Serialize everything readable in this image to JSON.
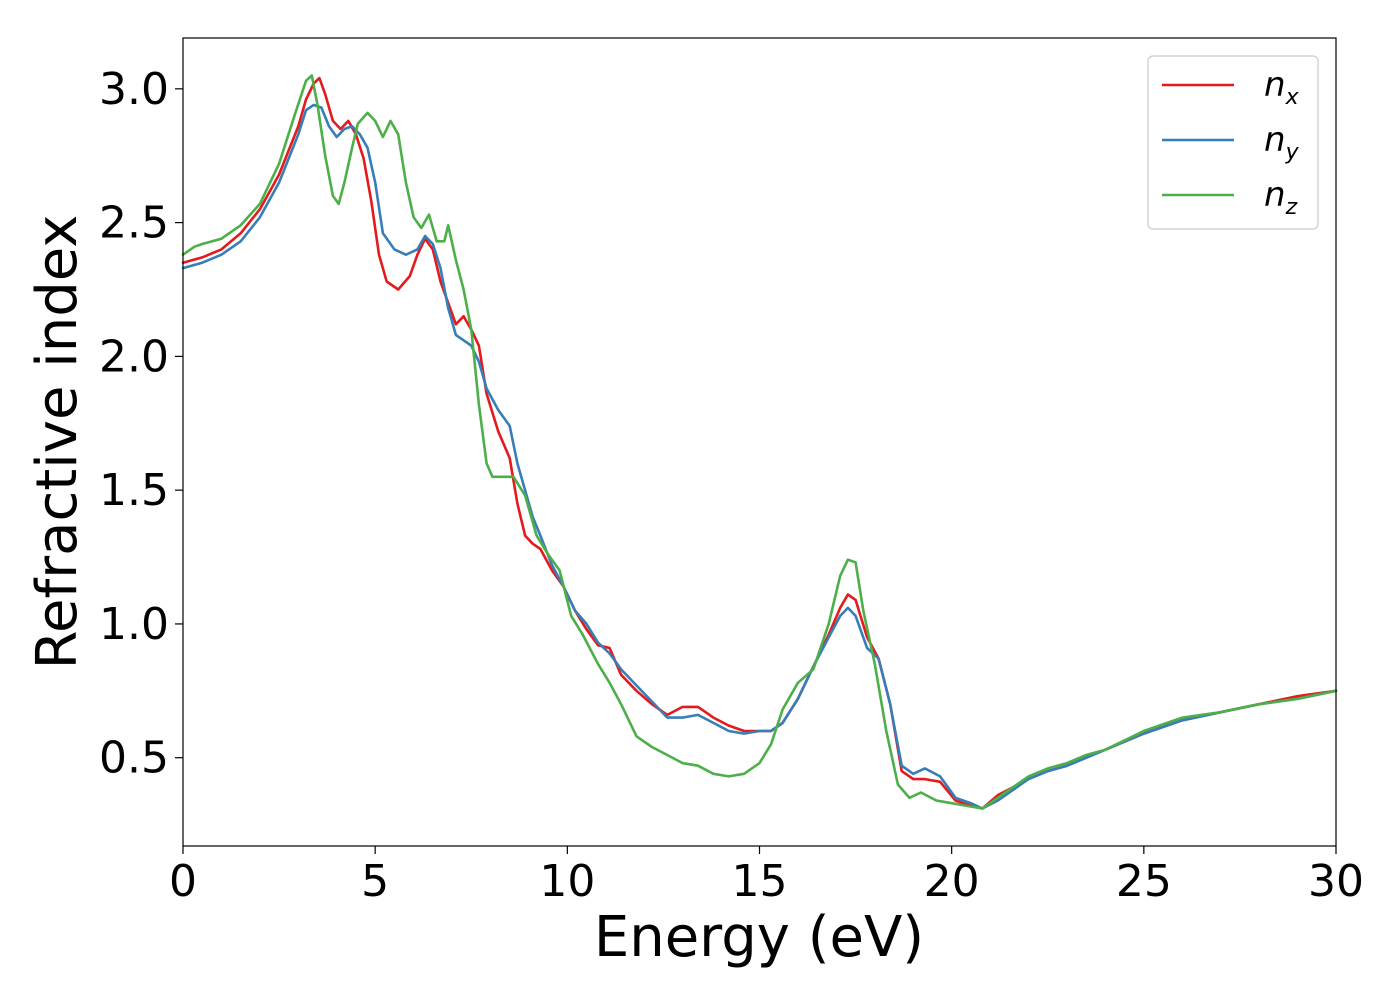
{
  "chart_data": {
    "type": "line",
    "title": "",
    "xlabel": "Energy (eV)",
    "ylabel": "Refractive index",
    "xlim": [
      0,
      30
    ],
    "ylim": [
      0.17,
      3.19
    ],
    "xticks": [
      0,
      5,
      10,
      15,
      20,
      25,
      30
    ],
    "xtick_labels": [
      "0",
      "5",
      "10",
      "15",
      "20",
      "25",
      "30"
    ],
    "yticks": [
      0.5,
      1.0,
      1.5,
      2.0,
      2.5,
      3.0
    ],
    "ytick_labels": [
      "0.5",
      "1.0",
      "1.5",
      "2.0",
      "2.5",
      "3.0"
    ],
    "grid": false,
    "legend_position": "top-right",
    "series": [
      {
        "name": "n",
        "subscript": "x",
        "color": "#e41a1c",
        "x": [
          0,
          0.5,
          1,
          1.5,
          2,
          2.5,
          3,
          3.2,
          3.4,
          3.55,
          3.7,
          3.9,
          4.1,
          4.3,
          4.5,
          4.7,
          4.9,
          5.1,
          5.3,
          5.6,
          5.9,
          6.1,
          6.3,
          6.5,
          6.7,
          6.9,
          7.1,
          7.3,
          7.5,
          7.7,
          7.9,
          8.2,
          8.5,
          8.7,
          8.9,
          9.1,
          9.3,
          9.6,
          9.9,
          10.2,
          10.5,
          10.8,
          11.1,
          11.4,
          11.8,
          12.2,
          12.6,
          13,
          13.4,
          13.8,
          14.2,
          14.6,
          15,
          15.3,
          15.6,
          16,
          16.4,
          16.8,
          17.1,
          17.3,
          17.5,
          17.8,
          18.1,
          18.4,
          18.7,
          19,
          19.3,
          19.7,
          20.1,
          20.5,
          20.8,
          21.2,
          21.6,
          22,
          22.5,
          23,
          23.5,
          24,
          25,
          26,
          27,
          28,
          29,
          30
        ],
        "y": [
          2.35,
          2.37,
          2.4,
          2.46,
          2.55,
          2.68,
          2.86,
          2.96,
          3.02,
          3.04,
          2.98,
          2.88,
          2.85,
          2.88,
          2.83,
          2.74,
          2.58,
          2.38,
          2.28,
          2.25,
          2.3,
          2.38,
          2.44,
          2.4,
          2.28,
          2.2,
          2.12,
          2.15,
          2.1,
          2.04,
          1.86,
          1.72,
          1.62,
          1.45,
          1.33,
          1.3,
          1.28,
          1.2,
          1.14,
          1.05,
          0.98,
          0.92,
          0.91,
          0.81,
          0.75,
          0.7,
          0.66,
          0.69,
          0.69,
          0.65,
          0.62,
          0.6,
          0.6,
          0.6,
          0.63,
          0.72,
          0.84,
          0.96,
          1.06,
          1.11,
          1.09,
          0.95,
          0.87,
          0.7,
          0.45,
          0.42,
          0.42,
          0.41,
          0.34,
          0.32,
          0.31,
          0.36,
          0.39,
          0.42,
          0.45,
          0.47,
          0.5,
          0.53,
          0.59,
          0.64,
          0.67,
          0.7,
          0.73,
          0.75
        ]
      },
      {
        "name": "n",
        "subscript": "y",
        "color": "#377eb8",
        "x": [
          0,
          0.5,
          1,
          1.5,
          2,
          2.5,
          3,
          3.2,
          3.4,
          3.6,
          3.8,
          4,
          4.2,
          4.4,
          4.6,
          4.8,
          5,
          5.2,
          5.5,
          5.8,
          6.1,
          6.3,
          6.5,
          6.7,
          6.9,
          7.1,
          7.3,
          7.5,
          7.7,
          7.9,
          8.2,
          8.5,
          8.7,
          8.9,
          9.1,
          9.3,
          9.6,
          9.9,
          10.2,
          10.5,
          10.8,
          11.1,
          11.4,
          11.8,
          12.2,
          12.6,
          13,
          13.4,
          13.8,
          14.2,
          14.6,
          15,
          15.3,
          15.6,
          16,
          16.4,
          16.8,
          17.1,
          17.3,
          17.5,
          17.8,
          18.1,
          18.4,
          18.7,
          19,
          19.3,
          19.7,
          20.1,
          20.5,
          20.8,
          21.2,
          21.6,
          22,
          22.5,
          23,
          23.5,
          24,
          25,
          26,
          27,
          28,
          29,
          30
        ],
        "y": [
          2.33,
          2.35,
          2.38,
          2.43,
          2.52,
          2.65,
          2.83,
          2.92,
          2.94,
          2.93,
          2.86,
          2.82,
          2.85,
          2.86,
          2.83,
          2.78,
          2.65,
          2.46,
          2.4,
          2.38,
          2.4,
          2.45,
          2.42,
          2.33,
          2.18,
          2.08,
          2.06,
          2.04,
          1.98,
          1.88,
          1.8,
          1.74,
          1.6,
          1.5,
          1.4,
          1.33,
          1.22,
          1.14,
          1.05,
          1.0,
          0.93,
          0.89,
          0.83,
          0.77,
          0.71,
          0.65,
          0.65,
          0.66,
          0.63,
          0.6,
          0.59,
          0.6,
          0.6,
          0.63,
          0.72,
          0.84,
          0.95,
          1.03,
          1.06,
          1.03,
          0.91,
          0.87,
          0.7,
          0.47,
          0.44,
          0.46,
          0.43,
          0.35,
          0.33,
          0.31,
          0.34,
          0.38,
          0.42,
          0.45,
          0.47,
          0.5,
          0.53,
          0.59,
          0.64,
          0.67,
          0.7,
          0.72,
          0.75
        ]
      },
      {
        "name": "n",
        "subscript": "z",
        "color": "#4daf4a",
        "x": [
          0,
          0.3,
          0.5,
          1,
          1.5,
          2,
          2.5,
          2.9,
          3.2,
          3.35,
          3.5,
          3.7,
          3.9,
          4.05,
          4.2,
          4.4,
          4.55,
          4.8,
          5,
          5.2,
          5.4,
          5.6,
          5.8,
          6,
          6.2,
          6.4,
          6.6,
          6.8,
          6.9,
          7.1,
          7.3,
          7.5,
          7.7,
          7.9,
          8.05,
          8.3,
          8.6,
          8.9,
          9.2,
          9.5,
          9.8,
          10.1,
          10.4,
          10.8,
          11.1,
          11.4,
          11.8,
          12.2,
          12.6,
          13,
          13.4,
          13.8,
          14.2,
          14.6,
          15,
          15.3,
          15.6,
          16,
          16.4,
          16.8,
          17.1,
          17.3,
          17.5,
          17.7,
          18,
          18.3,
          18.6,
          18.9,
          19.2,
          19.6,
          20,
          20.4,
          20.8,
          21.2,
          21.6,
          22,
          22.5,
          23,
          23.5,
          24,
          25,
          26,
          27,
          28,
          29,
          30
        ],
        "y": [
          2.38,
          2.41,
          2.42,
          2.44,
          2.49,
          2.57,
          2.72,
          2.9,
          3.03,
          3.05,
          2.94,
          2.75,
          2.6,
          2.57,
          2.65,
          2.78,
          2.87,
          2.91,
          2.88,
          2.82,
          2.88,
          2.83,
          2.65,
          2.52,
          2.48,
          2.53,
          2.43,
          2.43,
          2.49,
          2.36,
          2.25,
          2.1,
          1.82,
          1.6,
          1.55,
          1.55,
          1.55,
          1.48,
          1.33,
          1.26,
          1.2,
          1.03,
          0.96,
          0.85,
          0.78,
          0.7,
          0.58,
          0.54,
          0.51,
          0.48,
          0.47,
          0.44,
          0.43,
          0.44,
          0.48,
          0.55,
          0.68,
          0.78,
          0.83,
          1.0,
          1.18,
          1.24,
          1.23,
          1.05,
          0.85,
          0.6,
          0.4,
          0.35,
          0.37,
          0.34,
          0.33,
          0.32,
          0.31,
          0.35,
          0.39,
          0.43,
          0.46,
          0.48,
          0.51,
          0.53,
          0.6,
          0.65,
          0.67,
          0.7,
          0.72,
          0.75
        ]
      }
    ]
  }
}
